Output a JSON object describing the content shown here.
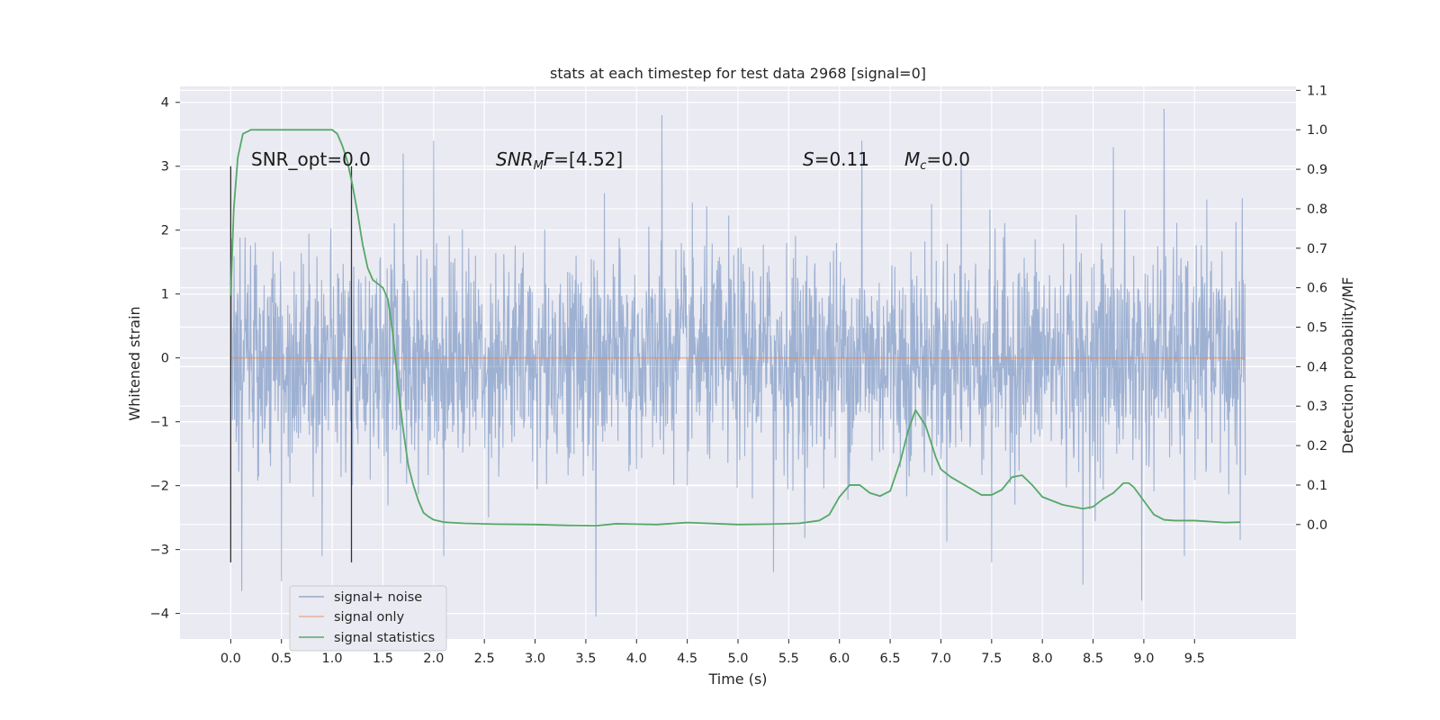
{
  "chart_data": {
    "type": "line",
    "title": "stats at each timestep for test data 2968 [signal=0]",
    "xlabel": "Time (s)",
    "ylabel": "Whitened strain",
    "y2label": "Detection probability/MF",
    "xlim": [
      -0.5,
      10.5
    ],
    "ylim": [
      -4.4,
      4.25
    ],
    "y2lim": [
      -0.29,
      1.11
    ],
    "x_ticks": [
      "0.0",
      "0.5",
      "1.0",
      "1.5",
      "2.0",
      "2.5",
      "3.0",
      "3.5",
      "4.0",
      "4.5",
      "5.0",
      "5.5",
      "6.0",
      "6.5",
      "7.0",
      "7.5",
      "8.0",
      "8.5",
      "9.0",
      "9.5"
    ],
    "y_ticks": [
      "4",
      "3",
      "2",
      "1",
      "0",
      "−1",
      "−2",
      "−3",
      "−4"
    ],
    "y2_ticks": [
      "1.1",
      "1.0",
      "0.9",
      "0.8",
      "0.7",
      "0.6",
      "0.5",
      "0.4",
      "0.3",
      "0.2",
      "0.1",
      "0.0"
    ],
    "grid": true,
    "legend_position": "lower-left",
    "colors": {
      "background": "#eaeaf2",
      "noise": "#4c72b0",
      "signal": "#dd8452",
      "statistics": "#55a868",
      "vline": "#333333"
    },
    "annotations": {
      "snr_opt": "SNR_opt=0.0",
      "snr_mf": "=[4.52]",
      "s_stat": "=0.11",
      "mc": "=0.0"
    },
    "series": [
      {
        "name": "signal+ noise",
        "kind": "noise",
        "x_range": [
          0.0,
          10.0
        ],
        "std": 0.85,
        "min": -4.05,
        "max": 3.9,
        "peaks": [
          {
            "x": 0.11,
            "y": -3.65
          },
          {
            "x": 0.5,
            "y": -3.5
          },
          {
            "x": 0.9,
            "y": -3.1
          },
          {
            "x": 1.7,
            "y": 3.2
          },
          {
            "x": 2.0,
            "y": 3.4
          },
          {
            "x": 2.1,
            "y": -3.1
          },
          {
            "x": 3.6,
            "y": -4.05
          },
          {
            "x": 4.25,
            "y": 3.8
          },
          {
            "x": 5.35,
            "y": -3.35
          },
          {
            "x": 6.22,
            "y": 3.4
          },
          {
            "x": 7.2,
            "y": 3.1
          },
          {
            "x": 7.5,
            "y": -3.2
          },
          {
            "x": 8.4,
            "y": -3.55
          },
          {
            "x": 8.7,
            "y": 3.3
          },
          {
            "x": 8.98,
            "y": -3.8
          },
          {
            "x": 9.2,
            "y": 3.9
          },
          {
            "x": 9.4,
            "y": -3.1
          },
          {
            "x": 9.95,
            "y": -2.85
          },
          {
            "x": 9.97,
            "y": 2.5
          }
        ]
      },
      {
        "name": "signal only",
        "kind": "line",
        "x": [
          0.0,
          10.0
        ],
        "y": [
          0.0,
          0.0
        ]
      },
      {
        "name": "signal statistics",
        "kind": "line",
        "axis": "right",
        "x": [
          0.0,
          0.03,
          0.07,
          0.12,
          0.2,
          0.3,
          0.5,
          0.7,
          0.9,
          1.0,
          1.05,
          1.1,
          1.15,
          1.2,
          1.25,
          1.3,
          1.35,
          1.4,
          1.45,
          1.5,
          1.55,
          1.6,
          1.65,
          1.7,
          1.75,
          1.8,
          1.85,
          1.9,
          1.95,
          2.0,
          2.1,
          2.3,
          2.6,
          3.0,
          3.3,
          3.6,
          3.8,
          4.0,
          4.2,
          4.5,
          4.8,
          5.0,
          5.3,
          5.6,
          5.8,
          5.9,
          6.0,
          6.1,
          6.15,
          6.2,
          6.3,
          6.4,
          6.5,
          6.6,
          6.68,
          6.75,
          6.85,
          6.95,
          7.0,
          7.1,
          7.3,
          7.4,
          7.5,
          7.6,
          7.7,
          7.8,
          7.9,
          8.0,
          8.2,
          8.4,
          8.5,
          8.6,
          8.7,
          8.8,
          8.85,
          8.9,
          9.0,
          9.1,
          9.2,
          9.3,
          9.5,
          9.8,
          9.95
        ],
        "y": [
          0.58,
          0.8,
          0.93,
          0.99,
          1.0,
          1.0,
          1.0,
          1.0,
          1.0,
          1.0,
          0.99,
          0.96,
          0.92,
          0.86,
          0.79,
          0.71,
          0.65,
          0.62,
          0.61,
          0.6,
          0.57,
          0.48,
          0.35,
          0.24,
          0.15,
          0.1,
          0.06,
          0.03,
          0.02,
          0.012,
          0.006,
          0.003,
          0.001,
          0.0,
          -0.002,
          -0.003,
          0.002,
          0.001,
          0.0,
          0.005,
          0.002,
          0.0,
          0.001,
          0.003,
          0.01,
          0.025,
          0.07,
          0.1,
          0.1,
          0.1,
          0.08,
          0.072,
          0.085,
          0.16,
          0.24,
          0.29,
          0.25,
          0.17,
          0.14,
          0.12,
          0.09,
          0.075,
          0.075,
          0.088,
          0.12,
          0.125,
          0.1,
          0.07,
          0.05,
          0.04,
          0.045,
          0.065,
          0.08,
          0.105,
          0.105,
          0.095,
          0.06,
          0.025,
          0.012,
          0.01,
          0.01,
          0.005,
          0.006
        ]
      }
    ],
    "vlines": [
      {
        "x": 0.0,
        "y": [
          -3.2,
          3.0
        ]
      },
      {
        "x": 1.19,
        "y": [
          -3.2,
          3.0
        ]
      }
    ]
  }
}
